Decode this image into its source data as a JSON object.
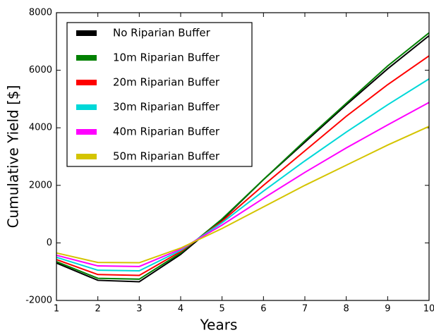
{
  "chart_data": {
    "type": "line",
    "x_label": "Years",
    "y_label": "Cumulative Yield [$]",
    "x": [
      1,
      2,
      3,
      4,
      5,
      6,
      7,
      8,
      9,
      10
    ],
    "xlim": [
      1,
      10
    ],
    "xticks": [
      1,
      2,
      3,
      4,
      5,
      6,
      7,
      8,
      9,
      10
    ],
    "ylim": [
      -2000,
      8000
    ],
    "yticks": [
      -2000,
      0,
      2000,
      4000,
      6000,
      8000
    ],
    "grid": false,
    "legend": "upper left",
    "series": [
      {
        "name": "No Riparian Buffer",
        "color": "#000000",
        "values": [
          -700,
          -1300,
          -1350,
          -400,
          800,
          2200,
          3500,
          4800,
          6050,
          7200
        ]
      },
      {
        "name": "10m Riparian Buffer",
        "color": "#008000",
        "values": [
          -650,
          -1230,
          -1260,
          -350,
          830,
          2200,
          3550,
          4850,
          6150,
          7300
        ]
      },
      {
        "name": "20m Riparian Buffer",
        "color": "#ff0000",
        "values": [
          -580,
          -1100,
          -1130,
          -300,
          750,
          2000,
          3200,
          4400,
          5500,
          6500
        ]
      },
      {
        "name": "30m Riparian Buffer",
        "color": "#00d8d8",
        "values": [
          -500,
          -950,
          -970,
          -260,
          700,
          1800,
          2850,
          3850,
          4800,
          5700
        ]
      },
      {
        "name": "40m Riparian Buffer",
        "color": "#ff00ff",
        "values": [
          -430,
          -800,
          -820,
          -220,
          620,
          1550,
          2450,
          3300,
          4100,
          4880
        ]
      },
      {
        "name": "50m Riparian Buffer",
        "color": "#d4c400",
        "values": [
          -350,
          -680,
          -690,
          -180,
          500,
          1250,
          2000,
          2700,
          3400,
          4050
        ]
      }
    ]
  }
}
